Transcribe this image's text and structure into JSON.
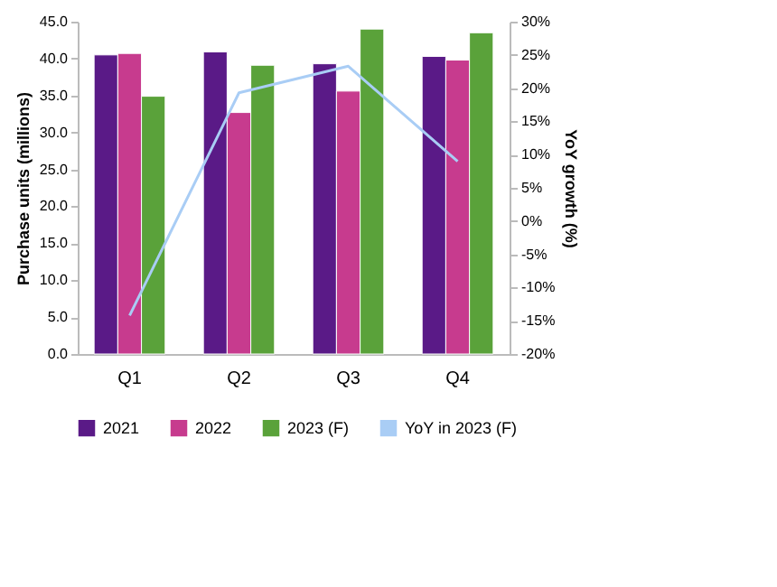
{
  "chart_data": {
    "type": "bar",
    "categories": [
      "Q1",
      "Q2",
      "Q3",
      "Q4"
    ],
    "ylabel": "Purchase units (millions)",
    "y2label": "YoY growth (%)",
    "series": [
      {
        "name": "2021",
        "color": "#5a1a87",
        "values": [
          40.5,
          40.9,
          39.3,
          40.3
        ]
      },
      {
        "name": "2022",
        "color": "#c73b8e",
        "values": [
          40.7,
          32.7,
          35.6,
          39.8
        ]
      },
      {
        "name": "2023 (F)",
        "color": "#5aa23a",
        "values": [
          34.9,
          39.1,
          44.0,
          43.5
        ]
      },
      {
        "name": "YoY in 2023 (F)",
        "type": "line",
        "axis": "y2",
        "color": "#a9cdf5",
        "values": [
          -14.2,
          19.3,
          23.3,
          9.0
        ]
      }
    ],
    "ylim": [
      0,
      45
    ],
    "yticks": [
      {
        "value": 0,
        "label": "0.0"
      },
      {
        "value": 5,
        "label": "5.0"
      },
      {
        "value": 10,
        "label": "10.0"
      },
      {
        "value": 15,
        "label": "15.0"
      },
      {
        "value": 20,
        "label": "20.0"
      },
      {
        "value": 25,
        "label": "25.0"
      },
      {
        "value": 30,
        "label": "30.0"
      },
      {
        "value": 35,
        "label": "35.0"
      },
      {
        "value": 40,
        "label": "40.0"
      },
      {
        "value": 45,
        "label": "45.0"
      }
    ],
    "y2lim": [
      -20,
      30
    ],
    "y2ticks": [
      {
        "value": -20,
        "label": "-20%"
      },
      {
        "value": -15,
        "label": "-15%"
      },
      {
        "value": -10,
        "label": "-10%"
      },
      {
        "value": -5,
        "label": "-5%"
      },
      {
        "value": 0,
        "label": "0%"
      },
      {
        "value": 5,
        "label": "5%"
      },
      {
        "value": 10,
        "label": "10%"
      },
      {
        "value": 15,
        "label": "15%"
      },
      {
        "value": 20,
        "label": "20%"
      },
      {
        "value": 25,
        "label": "25%"
      },
      {
        "value": 30,
        "label": "30%"
      }
    ],
    "grid": false,
    "legend": "bottom"
  }
}
